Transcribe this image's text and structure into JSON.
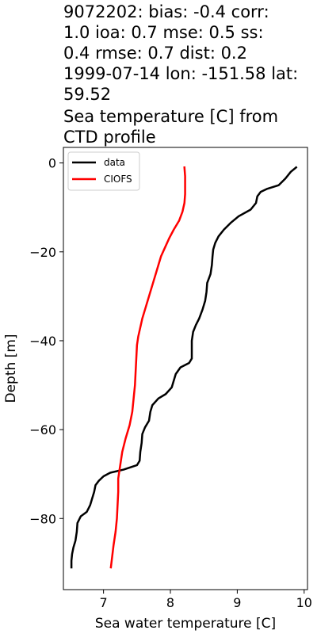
{
  "chart_data": {
    "type": "line",
    "title_lines": [
      "9072202: bias: -0.4  corr:",
      "1.0  ioa: 0.7  mse: 0.5  ss:",
      "0.4  rmse: 0.7  dist: 0.2",
      "1999-07-14 lon: -151.58 lat:",
      "59.52",
      "Sea temperature [C] from",
      "CTD profile"
    ],
    "xlabel": "Sea water temperature [C]",
    "ylabel": "Depth [m]",
    "xlim": [
      6.4,
      10.05
    ],
    "ylim": [
      -96,
      3.5
    ],
    "xticks": [
      7,
      8,
      9,
      10
    ],
    "xtick_labels": [
      "7",
      "8",
      "9",
      "10"
    ],
    "yticks": [
      0,
      -20,
      -40,
      -60,
      -80
    ],
    "ytick_labels": [
      "0",
      "−20",
      "−40",
      "−60",
      "−80"
    ],
    "legend_position": "upper-left",
    "grid": false,
    "series": [
      {
        "name": "data",
        "color": "#000000",
        "points": [
          [
            9.88,
            -1
          ],
          [
            9.8,
            -2
          ],
          [
            9.72,
            -3.5
          ],
          [
            9.62,
            -5
          ],
          [
            9.45,
            -5.8
          ],
          [
            9.35,
            -6.5
          ],
          [
            9.3,
            -7.5
          ],
          [
            9.28,
            -9
          ],
          [
            9.2,
            -10.5
          ],
          [
            9.02,
            -12
          ],
          [
            8.9,
            -13.5
          ],
          [
            8.8,
            -15
          ],
          [
            8.72,
            -16.5
          ],
          [
            8.67,
            -18
          ],
          [
            8.64,
            -19.5
          ],
          [
            8.63,
            -21
          ],
          [
            8.62,
            -23
          ],
          [
            8.6,
            -25
          ],
          [
            8.55,
            -27
          ],
          [
            8.54,
            -29
          ],
          [
            8.52,
            -31
          ],
          [
            8.48,
            -33
          ],
          [
            8.43,
            -35
          ],
          [
            8.38,
            -36.5
          ],
          [
            8.34,
            -38
          ],
          [
            8.32,
            -40
          ],
          [
            8.32,
            -42
          ],
          [
            8.32,
            -44
          ],
          [
            8.28,
            -45
          ],
          [
            8.15,
            -46
          ],
          [
            8.08,
            -47.5
          ],
          [
            8.05,
            -49
          ],
          [
            8.02,
            -50.5
          ],
          [
            7.93,
            -52
          ],
          [
            7.82,
            -53
          ],
          [
            7.73,
            -54.5
          ],
          [
            7.7,
            -56
          ],
          [
            7.68,
            -58
          ],
          [
            7.62,
            -59.5
          ],
          [
            7.58,
            -61
          ],
          [
            7.57,
            -63
          ],
          [
            7.55,
            -65
          ],
          [
            7.54,
            -67
          ],
          [
            7.5,
            -68
          ],
          [
            7.3,
            -69
          ],
          [
            7.1,
            -69.7
          ],
          [
            7.0,
            -70.5
          ],
          [
            6.93,
            -71.5
          ],
          [
            6.88,
            -72.5
          ],
          [
            6.86,
            -74
          ],
          [
            6.83,
            -75.5
          ],
          [
            6.8,
            -77
          ],
          [
            6.75,
            -78.5
          ],
          [
            6.66,
            -79.5
          ],
          [
            6.61,
            -81
          ],
          [
            6.6,
            -83
          ],
          [
            6.58,
            -85
          ],
          [
            6.55,
            -86.5
          ],
          [
            6.53,
            -88
          ],
          [
            6.52,
            -89.5
          ],
          [
            6.52,
            -91
          ]
        ]
      },
      {
        "name": "CIOFS",
        "color": "#ff0000",
        "points": [
          [
            8.21,
            -1
          ],
          [
            8.22,
            -3
          ],
          [
            8.22,
            -5
          ],
          [
            8.22,
            -7
          ],
          [
            8.21,
            -9
          ],
          [
            8.18,
            -11
          ],
          [
            8.13,
            -13
          ],
          [
            8.05,
            -15
          ],
          [
            7.98,
            -17
          ],
          [
            7.92,
            -19
          ],
          [
            7.86,
            -21
          ],
          [
            7.82,
            -23
          ],
          [
            7.78,
            -25
          ],
          [
            7.74,
            -27
          ],
          [
            7.7,
            -29
          ],
          [
            7.66,
            -31
          ],
          [
            7.62,
            -33
          ],
          [
            7.58,
            -35
          ],
          [
            7.55,
            -37
          ],
          [
            7.52,
            -39
          ],
          [
            7.5,
            -41
          ],
          [
            7.49,
            -44
          ],
          [
            7.48,
            -47
          ],
          [
            7.47,
            -50
          ],
          [
            7.45,
            -53
          ],
          [
            7.43,
            -56
          ],
          [
            7.39,
            -59
          ],
          [
            7.33,
            -62
          ],
          [
            7.28,
            -65
          ],
          [
            7.26,
            -67
          ],
          [
            7.24,
            -69
          ],
          [
            7.22,
            -71
          ],
          [
            7.22,
            -74
          ],
          [
            7.21,
            -77
          ],
          [
            7.2,
            -80
          ],
          [
            7.18,
            -83
          ],
          [
            7.15,
            -86
          ],
          [
            7.13,
            -88.5
          ],
          [
            7.11,
            -91
          ]
        ]
      }
    ]
  }
}
